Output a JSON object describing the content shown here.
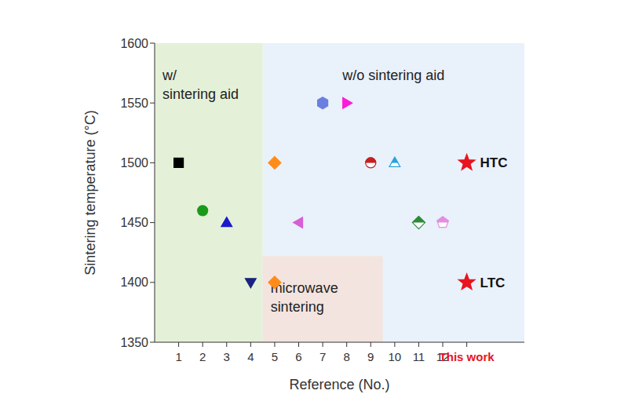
{
  "chart_data": {
    "type": "scatter",
    "xlabel": "Reference (No.)",
    "ylabel": "Sintering temperature (°C)",
    "categories": [
      "1",
      "2",
      "3",
      "4",
      "5",
      "6",
      "7",
      "8",
      "9",
      "10",
      "11",
      "12",
      "This work"
    ],
    "ylim": [
      1350,
      1600
    ],
    "yticks": [
      1350,
      1400,
      1450,
      1500,
      1550,
      1600
    ],
    "points": [
      {
        "x": "1",
        "y": 1500,
        "color": "#000000",
        "marker": "square"
      },
      {
        "x": "2",
        "y": 1460,
        "color": "#1a9a1a",
        "marker": "circle"
      },
      {
        "x": "3",
        "y": 1450,
        "color": "#1a1acc",
        "marker": "triangle_up"
      },
      {
        "x": "4",
        "y": 1400,
        "color": "#1a237e",
        "marker": "triangle_down"
      },
      {
        "x": "5",
        "y": 1500,
        "color": "#ff8c1a",
        "marker": "diamond"
      },
      {
        "x": "5",
        "y": 1400,
        "color": "#ff8c1a",
        "marker": "diamond"
      },
      {
        "x": "6",
        "y": 1450,
        "color": "#d65fd6",
        "marker": "triangle_left"
      },
      {
        "x": "7",
        "y": 1550,
        "color": "#6a7fe0",
        "marker": "hexagon"
      },
      {
        "x": "8",
        "y": 1550,
        "color": "#ff1ad9",
        "marker": "triangle_right"
      },
      {
        "x": "9",
        "y": 1500,
        "color": "#c81e1e",
        "marker": "half_circle"
      },
      {
        "x": "10",
        "y": 1500,
        "color": "#29a3dc",
        "marker": "half_triangle"
      },
      {
        "x": "11",
        "y": 1450,
        "color": "#2e8b3a",
        "marker": "half_diamond"
      },
      {
        "x": "12",
        "y": 1450,
        "color": "#e38fe0",
        "marker": "half_pentagon"
      },
      {
        "x": "This work",
        "y": 1500,
        "color": "#e8141e",
        "marker": "star",
        "label": "HTC"
      },
      {
        "x": "This work",
        "y": 1400,
        "color": "#e8141e",
        "marker": "star",
        "label": "LTC"
      }
    ],
    "regions": [
      {
        "lines": [
          "w/o sintering aid"
        ],
        "from": "5",
        "to": "This work",
        "color": "#e9f1fb"
      },
      {
        "lines": [
          "w/",
          "sintering aid"
        ],
        "from": "1",
        "to": "4",
        "color": "#e4f1d8"
      },
      {
        "lines": [
          "microwave",
          "sintering"
        ],
        "from": "5",
        "to": "9",
        "ylim": [
          1350,
          1422
        ],
        "color": "#f3e4df"
      }
    ]
  }
}
